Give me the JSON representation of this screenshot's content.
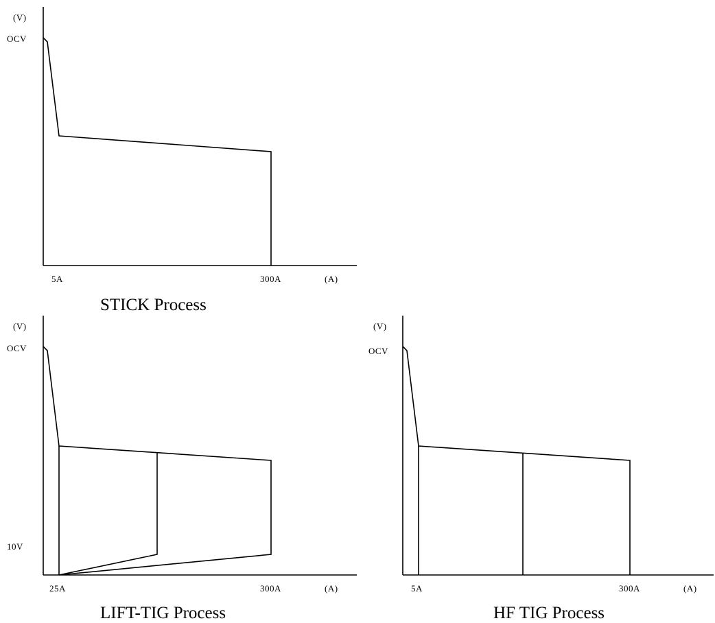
{
  "panels": [
    {
      "id": "stick",
      "title": "STICK Process",
      "y_unit": "(V)",
      "y_label_top": "OCV",
      "y_label_low": "",
      "x_label_1": "5A",
      "x_label_2": "300A",
      "x_unit": "(A)"
    },
    {
      "id": "lift-tig",
      "title": "LIFT-TIG Process",
      "y_unit": "(V)",
      "y_label_top": "OCV",
      "y_label_low": "10V",
      "x_label_1": "25A",
      "x_label_2": "300A",
      "x_unit": "(A)"
    },
    {
      "id": "hf-tig",
      "title": "HF TIG Process",
      "y_unit": "(V)",
      "y_label_top": "OCV",
      "y_label_low": "",
      "x_label_1": "5A",
      "x_label_2": "300A",
      "x_unit": "(A)"
    }
  ]
}
